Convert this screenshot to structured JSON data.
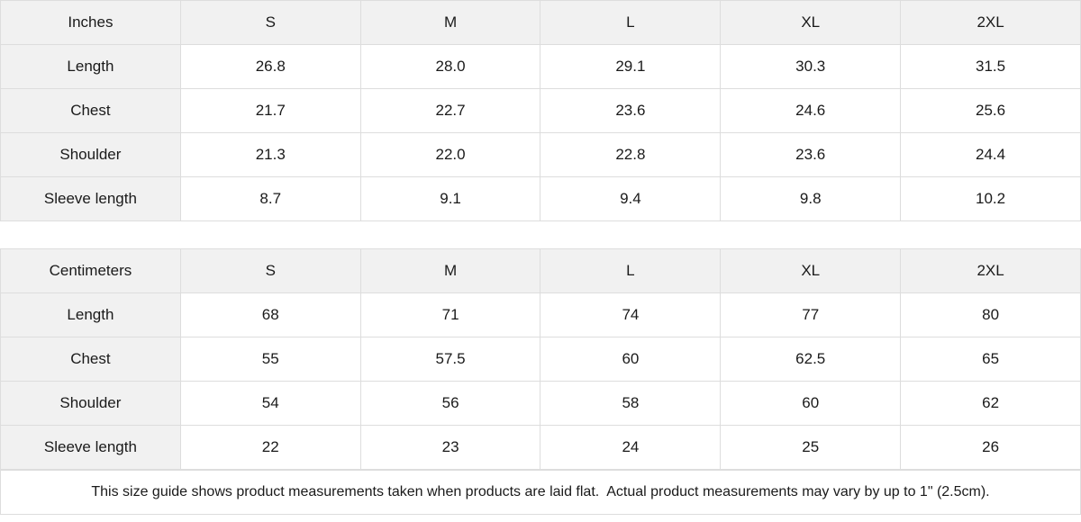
{
  "colors": {
    "header_bg": "#f1f1f1",
    "border": "#dddddd",
    "text": "#1a1a1a",
    "background": "#ffffff"
  },
  "tables": [
    {
      "unit_label": "Inches",
      "sizes": [
        "S",
        "M",
        "L",
        "XL",
        "2XL"
      ],
      "rows": [
        {
          "label": "Length",
          "values": [
            "26.8",
            "28.0",
            "29.1",
            "30.3",
            "31.5"
          ]
        },
        {
          "label": "Chest",
          "values": [
            "21.7",
            "22.7",
            "23.6",
            "24.6",
            "25.6"
          ]
        },
        {
          "label": "Shoulder",
          "values": [
            "21.3",
            "22.0",
            "22.8",
            "23.6",
            "24.4"
          ]
        },
        {
          "label": "Sleeve length",
          "values": [
            "8.7",
            "9.1",
            "9.4",
            "9.8",
            "10.2"
          ]
        }
      ]
    },
    {
      "unit_label": "Centimeters",
      "sizes": [
        "S",
        "M",
        "L",
        "XL",
        "2XL"
      ],
      "rows": [
        {
          "label": "Length",
          "values": [
            "68",
            "71",
            "74",
            "77",
            "80"
          ]
        },
        {
          "label": "Chest",
          "values": [
            "55",
            "57.5",
            "60",
            "62.5",
            "65"
          ]
        },
        {
          "label": "Shoulder",
          "values": [
            "54",
            "56",
            "58",
            "60",
            "62"
          ]
        },
        {
          "label": "Sleeve length",
          "values": [
            "22",
            "23",
            "24",
            "25",
            "26"
          ]
        }
      ]
    }
  ],
  "footer": {
    "note": "This size guide shows product measurements taken when products are laid flat.  Actual product measurements may vary by up to 1\" (2.5cm)."
  }
}
